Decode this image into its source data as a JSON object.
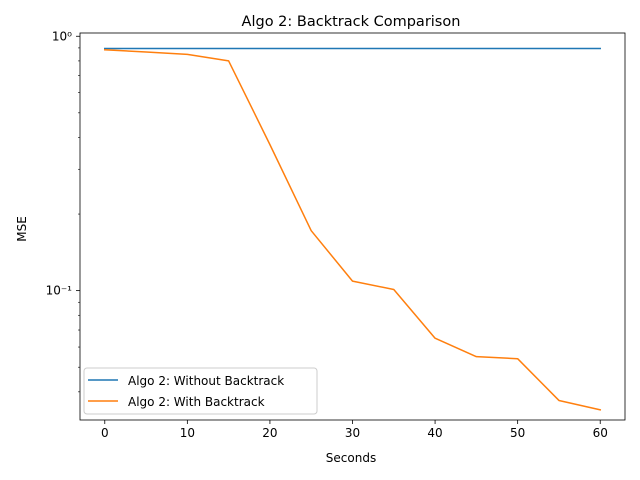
{
  "chart_data": {
    "type": "line",
    "title": "Algo 2: Backtrack Comparison",
    "xlabel": "Seconds",
    "ylabel": "MSE",
    "yscale": "log",
    "xlim": [
      -3,
      63
    ],
    "ylim": [
      0.031,
      1.03
    ],
    "x": [
      0,
      5,
      10,
      15,
      20,
      25,
      30,
      35,
      40,
      45,
      50,
      55,
      60
    ],
    "x_ticks": [
      0,
      10,
      20,
      30,
      40,
      50,
      60
    ],
    "x_tick_labels": [
      "0",
      "10",
      "20",
      "30",
      "40",
      "50",
      "60"
    ],
    "y_ticks": [
      0.1,
      1
    ],
    "y_tick_labels": [
      "10⁻¹",
      "10⁰"
    ],
    "legend_position": "lower-left",
    "series": [
      {
        "name": "Algo 2: Without Backtrack",
        "color": "#1f77b4",
        "values": [
          0.895,
          0.895,
          0.895,
          0.895,
          0.895,
          0.895,
          0.895,
          0.895,
          0.895,
          0.895,
          0.895,
          0.895,
          0.895
        ]
      },
      {
        "name": "Algo 2: With Backtrack",
        "color": "#ff7f0e",
        "values": [
          0.885,
          0.867,
          0.849,
          0.8,
          0.375,
          0.172,
          0.109,
          0.101,
          0.065,
          0.055,
          0.054,
          0.037,
          0.034
        ]
      }
    ]
  }
}
